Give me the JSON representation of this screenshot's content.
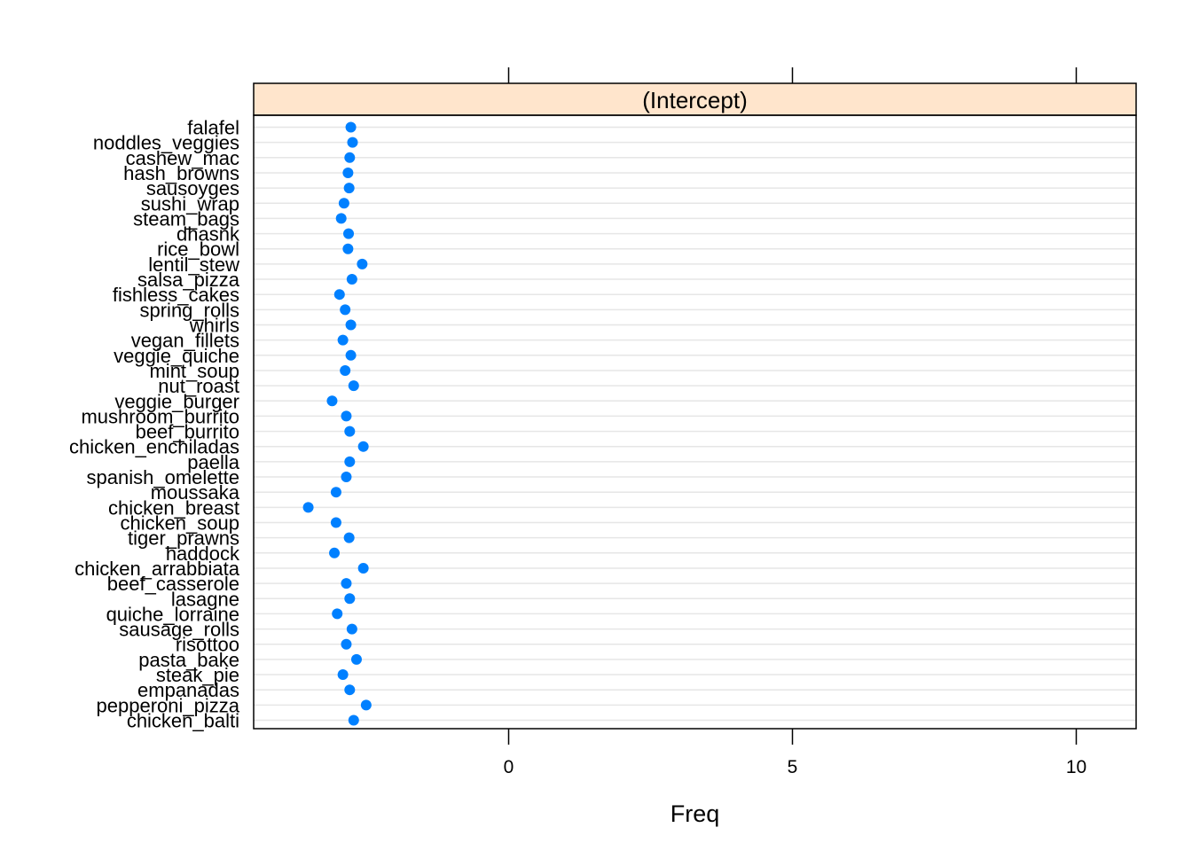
{
  "chart_data": {
    "type": "scatter",
    "style": "dotplot",
    "strip_label": "(Intercept)",
    "xlabel": "Freq",
    "ylabel": "",
    "xlim": [
      -4.5,
      11
    ],
    "x_ticks": [
      0,
      5,
      10
    ],
    "x_tick_labels": [
      "0",
      "5",
      "10"
    ],
    "categories": [
      "falafel",
      "noddles_veggies",
      "cashew_mac",
      "hash_browns",
      "sausoyges",
      "sushi_wrap",
      "steam_bags",
      "dhasnk",
      "rice_bowl",
      "lentil_stew",
      "salsa_pizza",
      "fishless_cakes",
      "spring_rolls",
      "whirls",
      "vegan_fillets",
      "veggie_quiche",
      "mint_soup",
      "nut_roast",
      "veggie_burger",
      "mushroom_burrito",
      "beef_burrito",
      "chicken_enchiladas",
      "paella",
      "spanish_omelette",
      "moussaka",
      "chicken_breast",
      "chicken_soup",
      "tiger_prawns",
      "haddock",
      "chicken_arrabbiata",
      "beef_casserole",
      "lasagne",
      "quiche_lorraine",
      "sausage_rolls",
      "risottoo",
      "pasta_bake",
      "steak_pie",
      "empanadas",
      "pepperoni_pizza",
      "chicken_balti"
    ],
    "values": [
      -2.78,
      -2.75,
      -2.8,
      -2.83,
      -2.81,
      -2.9,
      -2.95,
      -2.82,
      -2.83,
      -2.58,
      -2.76,
      -2.98,
      -2.88,
      -2.78,
      -2.92,
      -2.78,
      -2.88,
      -2.73,
      -3.11,
      -2.86,
      -2.8,
      -2.56,
      -2.8,
      -2.86,
      -3.04,
      -3.53,
      -3.04,
      -2.81,
      -3.07,
      -2.56,
      -2.86,
      -2.8,
      -3.02,
      -2.76,
      -2.86,
      -2.68,
      -2.92,
      -2.8,
      -2.51,
      -2.73
    ],
    "grid": true,
    "series_color": "#0080ff",
    "strip_color": "#ffe5cc"
  }
}
